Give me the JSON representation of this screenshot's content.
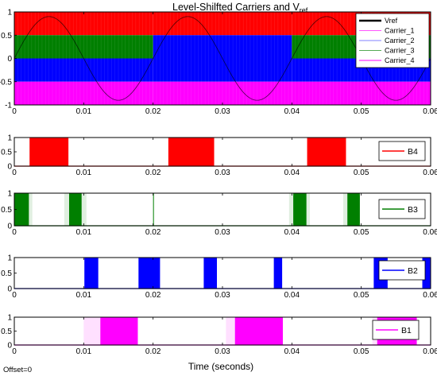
{
  "figure": {
    "title_main": "Level-Shilfted Carriers and V",
    "title_sub": "ref",
    "xlabel": "Time (seconds)",
    "offset_label": "Offset=0",
    "colors": {
      "red": "#ff0000",
      "green": "#007f00",
      "blue": "#0000ff",
      "magenta": "#ff00ff",
      "black": "#000000"
    }
  },
  "chart_data": [
    {
      "type": "line",
      "title": "Level-Shilfted Carriers and Vref",
      "xlim": [
        0,
        0.06
      ],
      "ylim": [
        -1,
        1
      ],
      "x_ticks": [
        "0",
        "0.01",
        "0.02",
        "0.03",
        "0.04",
        "0.05",
        "0.06"
      ],
      "y_ticks": [
        "1",
        "0.5",
        "0",
        "-0.5",
        "-1"
      ],
      "legend_position": "top-right",
      "series": [
        {
          "name": "Vref",
          "color": "#000000",
          "kind": "sine",
          "amplitude": 0.9,
          "frequency_hz": 50,
          "values_y_range": [
            -0.9,
            0.9
          ]
        },
        {
          "name": "Carrier_1",
          "color": "#ff55ff",
          "kind": "triangle",
          "band": [
            0.5,
            1
          ]
        },
        {
          "name": "Carrier_2",
          "color": "#8080ff",
          "kind": "triangle",
          "band": [
            0,
            0.5
          ]
        },
        {
          "name": "Carrier_3",
          "color": "#55aa55",
          "kind": "triangle",
          "band": [
            -0.5,
            0
          ]
        },
        {
          "name": "Carrier_4",
          "color": "#ff00ff",
          "kind": "triangle",
          "band": [
            -1,
            -0.5
          ]
        }
      ],
      "bands_by_half_cycle": {
        "positive_half": [
          "red",
          "green",
          "blue",
          "magenta"
        ],
        "negative_half": [
          "red",
          "blue",
          "blue",
          "magenta"
        ]
      }
    },
    {
      "type": "area",
      "name": "B4",
      "color": "#ff0000",
      "xlim": [
        0,
        0.06
      ],
      "ylim": [
        0,
        1
      ],
      "x_ticks": [
        "0",
        "0.01",
        "0.02",
        "0.03",
        "0.04",
        "0.05",
        "0.06"
      ],
      "y_ticks": [
        "1",
        "0.5",
        "0"
      ],
      "high_intervals": [
        [
          0.0022,
          0.0078
        ],
        [
          0.0222,
          0.0288
        ],
        [
          0.0422,
          0.0478
        ]
      ]
    },
    {
      "type": "area",
      "name": "B3",
      "color": "#007f00",
      "xlim": [
        0,
        0.06
      ],
      "ylim": [
        0,
        1
      ],
      "x_ticks": [
        "0",
        "0.01",
        "0.02",
        "0.03",
        "0.04",
        "0.05",
        "0.06"
      ],
      "y_ticks": [
        "1",
        "0.5",
        "0"
      ],
      "high_intervals": [
        [
          0.0,
          0.0021
        ],
        [
          0.0079,
          0.0097
        ],
        [
          0.02,
          0.0201
        ],
        [
          0.0402,
          0.0421
        ],
        [
          0.048,
          0.0498
        ]
      ],
      "faint_intervals": [
        [
          0.0,
          0.0004
        ],
        [
          0.0021,
          0.0026
        ],
        [
          0.0072,
          0.0079
        ],
        [
          0.0097,
          0.0104
        ],
        [
          0.0396,
          0.0402
        ],
        [
          0.0421,
          0.0426
        ],
        [
          0.0474,
          0.048
        ]
      ]
    },
    {
      "type": "area",
      "name": "B2",
      "color": "#0000ff",
      "xlim": [
        0,
        0.06
      ],
      "ylim": [
        0,
        1
      ],
      "x_ticks": [
        "0",
        "0.01",
        "0.02",
        "0.03",
        "0.04",
        "0.05",
        "0.06"
      ],
      "y_ticks": [
        "1",
        "0.5",
        "0"
      ],
      "high_intervals": [
        [
          0.0101,
          0.0121
        ],
        [
          0.0179,
          0.021
        ],
        [
          0.0273,
          0.0292
        ],
        [
          0.0374,
          0.0386
        ],
        [
          0.0518,
          0.0538
        ],
        [
          0.0588,
          0.06
        ]
      ]
    },
    {
      "type": "area",
      "name": "B1",
      "color": "#ff00ff",
      "xlim": [
        0,
        0.06
      ],
      "ylim": [
        0,
        1
      ],
      "x_ticks": [
        "0",
        "0.01",
        "0.02",
        "0.03",
        "0.04",
        "0.05",
        "0.06"
      ],
      "y_ticks": [
        "1",
        "0.5",
        "0"
      ],
      "high_intervals": [
        [
          0.0124,
          0.0178
        ],
        [
          0.0318,
          0.0387
        ],
        [
          0.0523,
          0.058
        ]
      ],
      "faint_intervals": [
        [
          0.01,
          0.0124
        ],
        [
          0.0305,
          0.0318
        ],
        [
          0.0516,
          0.0523
        ]
      ]
    }
  ]
}
